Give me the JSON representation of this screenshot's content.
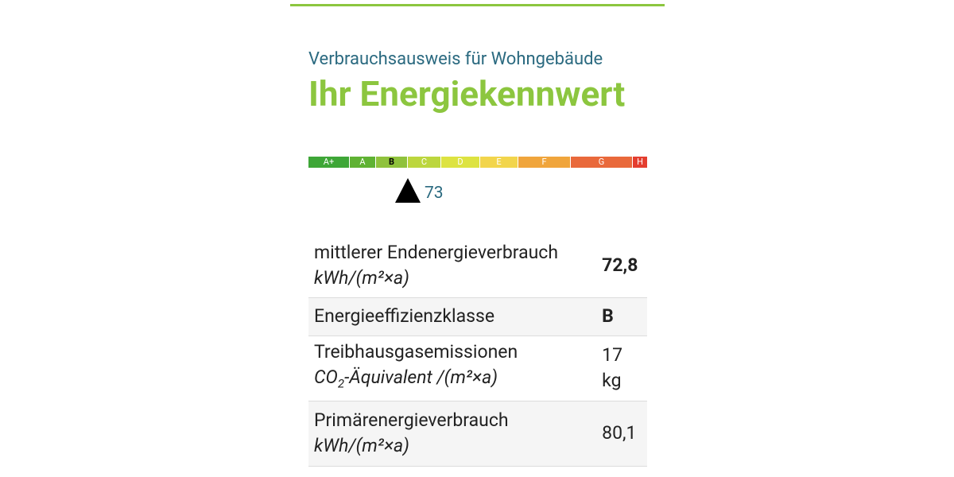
{
  "header": {
    "subtitle": "Verbrauchsausweis für Wohngebäude",
    "title": "Ihr Energiekennwert"
  },
  "scale": {
    "classes": [
      "A+",
      "A",
      "B",
      "C",
      "D",
      "E",
      "F",
      "G",
      "H"
    ],
    "marker_value": "73"
  },
  "table": {
    "rows": [
      {
        "label": "mittlerer Endenergieverbrauch",
        "unit": "kWh/(m²×a)",
        "value": "72,8"
      },
      {
        "label": "Energieeffizienzklasse",
        "value": "B"
      },
      {
        "label": "Treibhausgasemissionen",
        "unit_parts": [
          "CO",
          "2",
          "-Äquivalent /(m²×a)"
        ],
        "value": "17 kg"
      },
      {
        "label": "Primärenergieverbrauch",
        "unit": "kWh/(m²×a)",
        "value": "80,1"
      }
    ]
  }
}
